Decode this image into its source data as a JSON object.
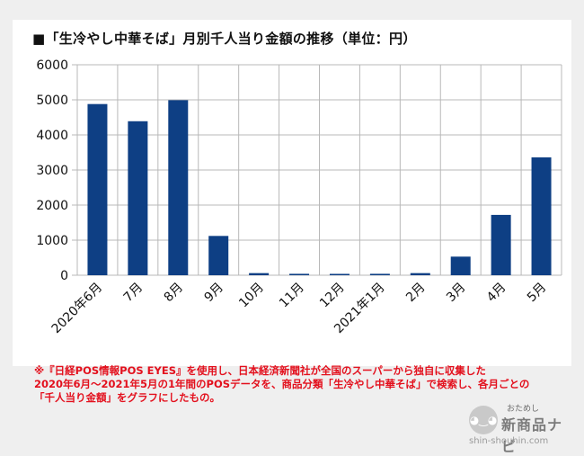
{
  "title": "■「生冷やし中華そば」月別千人当り金額の推移（単位：円）",
  "chart_data": {
    "type": "bar",
    "title": "■「生冷やし中華そば」月別千人当り金額の推移（単位：円）",
    "categories": [
      "2020年6月",
      "7月",
      "8月",
      "9月",
      "10月",
      "11月",
      "12月",
      "2021年1月",
      "2月",
      "3月",
      "4月",
      "5月"
    ],
    "series": [
      {
        "values": [
          4880,
          4390,
          4990,
          1120,
          60,
          40,
          30,
          40,
          60,
          530,
          1720,
          3360
        ]
      }
    ],
    "ylim": [
      0,
      6000
    ],
    "yticks": [
      0,
      1000,
      2000,
      3000,
      4000,
      5000,
      6000
    ],
    "grid": true,
    "bar_color": "#0e3f84"
  },
  "note": {
    "lines": [
      "※『日経POS情報POS EYES』を使用し、日本経済新聞社が全国のスーパーから独自に収集した",
      "2020年6月～2021年5月の1年間のPOSデータを、商品分類「生冷やし中華そば」で検索し、各月ごとの",
      "「千人当り金額」をグラフにしたもの。"
    ]
  },
  "logo": {
    "small_text": "おためし",
    "main_text": "新商品ナビ",
    "url": "shin-shouhin.com"
  }
}
